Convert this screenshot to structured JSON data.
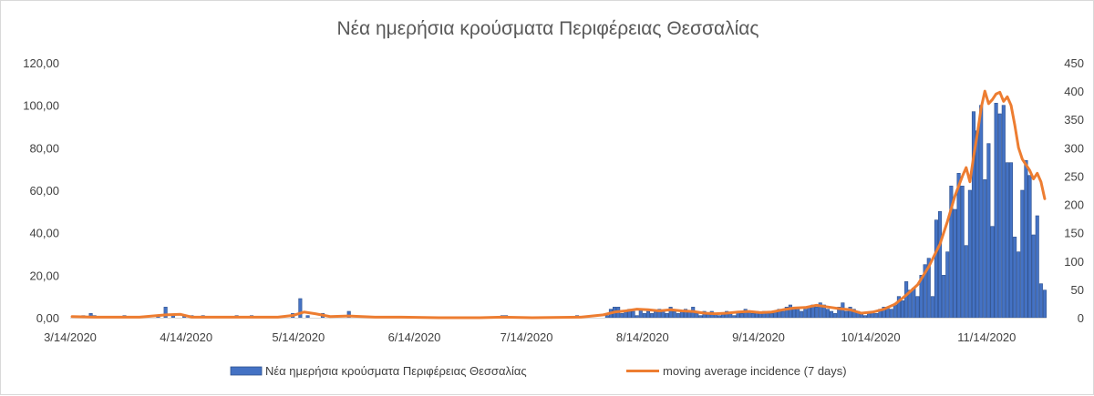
{
  "chart_data": {
    "type": "bar",
    "title": "Νέα ημερήσια κρούσματα Περιφέρειας Θεσσαλίας",
    "x_start": "2020-03-14",
    "x_end": "2020-11-30",
    "x_ticks": [
      "3/14/2020",
      "4/14/2020",
      "5/14/2020",
      "6/14/2020",
      "7/14/2020",
      "8/14/2020",
      "9/14/2020",
      "10/14/2020",
      "11/14/2020"
    ],
    "y_left": {
      "ticks": [
        "0,00",
        "20,00",
        "40,00",
        "60,00",
        "80,00",
        "100,00",
        "120,00"
      ],
      "range": [
        0,
        120
      ]
    },
    "y_right": {
      "ticks": [
        "0",
        "50",
        "100",
        "150",
        "200",
        "250",
        "300",
        "350",
        "400",
        "450"
      ],
      "range": [
        0,
        450
      ]
    },
    "grid": false,
    "legend_position": "bottom",
    "series": [
      {
        "name": "Νέα ημερήσια κρούσματα Περιφέρειας Θεσσαλίας",
        "kind": "bar",
        "axis": "left",
        "color": "#4472c4",
        "points": [
          [
            "2020-03-17",
            1
          ],
          [
            "2020-03-19",
            2
          ],
          [
            "2020-03-20",
            1
          ],
          [
            "2020-03-28",
            1
          ],
          [
            "2020-04-06",
            1
          ],
          [
            "2020-04-08",
            5
          ],
          [
            "2020-04-10",
            1
          ],
          [
            "2020-04-13",
            1
          ],
          [
            "2020-04-15",
            1
          ],
          [
            "2020-04-18",
            1
          ],
          [
            "2020-04-27",
            1
          ],
          [
            "2020-05-01",
            1
          ],
          [
            "2020-05-12",
            2
          ],
          [
            "2020-05-14",
            9
          ],
          [
            "2020-05-16",
            1
          ],
          [
            "2020-05-20",
            2
          ],
          [
            "2020-05-27",
            3
          ],
          [
            "2020-07-07",
            1
          ],
          [
            "2020-07-08",
            1
          ],
          [
            "2020-07-27",
            1
          ],
          [
            "2020-08-04",
            1
          ],
          [
            "2020-08-05",
            4
          ],
          [
            "2020-08-06",
            5
          ],
          [
            "2020-08-07",
            5
          ],
          [
            "2020-08-08",
            2
          ],
          [
            "2020-08-09",
            3
          ],
          [
            "2020-08-10",
            4
          ],
          [
            "2020-08-11",
            3
          ],
          [
            "2020-08-12",
            1
          ],
          [
            "2020-08-13",
            4
          ],
          [
            "2020-08-14",
            2
          ],
          [
            "2020-08-15",
            3
          ],
          [
            "2020-08-16",
            2
          ],
          [
            "2020-08-17",
            3
          ],
          [
            "2020-08-18",
            4
          ],
          [
            "2020-08-19",
            3
          ],
          [
            "2020-08-20",
            2
          ],
          [
            "2020-08-21",
            5
          ],
          [
            "2020-08-22",
            3
          ],
          [
            "2020-08-23",
            2
          ],
          [
            "2020-08-24",
            3
          ],
          [
            "2020-08-25",
            4
          ],
          [
            "2020-08-26",
            3
          ],
          [
            "2020-08-27",
            5
          ],
          [
            "2020-08-28",
            2
          ],
          [
            "2020-08-29",
            1
          ],
          [
            "2020-08-30",
            3
          ],
          [
            "2020-08-31",
            2
          ],
          [
            "2020-09-01",
            3
          ],
          [
            "2020-09-02",
            2
          ],
          [
            "2020-09-03",
            1
          ],
          [
            "2020-09-04",
            2
          ],
          [
            "2020-09-05",
            3
          ],
          [
            "2020-09-06",
            2
          ],
          [
            "2020-09-07",
            1
          ],
          [
            "2020-09-08",
            3
          ],
          [
            "2020-09-09",
            2
          ],
          [
            "2020-09-10",
            4
          ],
          [
            "2020-09-11",
            3
          ],
          [
            "2020-09-12",
            2
          ],
          [
            "2020-09-13",
            3
          ],
          [
            "2020-09-14",
            2
          ],
          [
            "2020-09-15",
            3
          ],
          [
            "2020-09-16",
            2
          ],
          [
            "2020-09-17",
            2
          ],
          [
            "2020-09-18",
            3
          ],
          [
            "2020-09-19",
            4
          ],
          [
            "2020-09-20",
            3
          ],
          [
            "2020-09-21",
            5
          ],
          [
            "2020-09-22",
            6
          ],
          [
            "2020-09-23",
            4
          ],
          [
            "2020-09-24",
            5
          ],
          [
            "2020-09-25",
            3
          ],
          [
            "2020-09-26",
            4
          ],
          [
            "2020-09-27",
            5
          ],
          [
            "2020-09-28",
            6
          ],
          [
            "2020-09-29",
            5
          ],
          [
            "2020-09-30",
            7
          ],
          [
            "2020-10-01",
            6
          ],
          [
            "2020-10-02",
            4
          ],
          [
            "2020-10-03",
            3
          ],
          [
            "2020-10-04",
            2
          ],
          [
            "2020-10-05",
            5
          ],
          [
            "2020-10-06",
            7
          ],
          [
            "2020-10-07",
            3
          ],
          [
            "2020-10-08",
            5
          ],
          [
            "2020-10-09",
            4
          ],
          [
            "2020-10-10",
            3
          ],
          [
            "2020-10-11",
            2
          ],
          [
            "2020-10-12",
            1
          ],
          [
            "2020-10-13",
            2
          ],
          [
            "2020-10-14",
            3
          ],
          [
            "2020-10-15",
            2
          ],
          [
            "2020-10-16",
            4
          ],
          [
            "2020-10-17",
            5
          ],
          [
            "2020-10-18",
            5
          ],
          [
            "2020-10-19",
            4
          ],
          [
            "2020-10-20",
            6
          ],
          [
            "2020-10-21",
            10
          ],
          [
            "2020-10-22",
            8
          ],
          [
            "2020-10-23",
            17
          ],
          [
            "2020-10-24",
            13
          ],
          [
            "2020-10-25",
            14
          ],
          [
            "2020-10-26",
            10
          ],
          [
            "2020-10-27",
            20
          ],
          [
            "2020-10-28",
            25
          ],
          [
            "2020-10-29",
            28
          ],
          [
            "2020-10-30",
            10
          ],
          [
            "2020-10-31",
            46
          ],
          [
            "2020-11-01",
            50
          ],
          [
            "2020-11-02",
            20
          ],
          [
            "2020-11-03",
            31
          ],
          [
            "2020-11-04",
            62
          ],
          [
            "2020-11-05",
            51
          ],
          [
            "2020-11-06",
            68
          ],
          [
            "2020-11-07",
            62
          ],
          [
            "2020-11-08",
            34
          ],
          [
            "2020-11-09",
            60
          ],
          [
            "2020-11-10",
            97
          ],
          [
            "2020-11-11",
            88
          ],
          [
            "2020-11-12",
            100
          ],
          [
            "2020-11-13",
            65
          ],
          [
            "2020-11-14",
            82
          ],
          [
            "2020-11-15",
            43
          ],
          [
            "2020-11-16",
            101
          ],
          [
            "2020-11-17",
            96
          ],
          [
            "2020-11-18",
            100
          ],
          [
            "2020-11-19",
            73
          ],
          [
            "2020-11-20",
            73
          ],
          [
            "2020-11-21",
            38
          ],
          [
            "2020-11-22",
            31
          ],
          [
            "2020-11-23",
            60
          ],
          [
            "2020-11-24",
            74
          ],
          [
            "2020-11-25",
            67
          ],
          [
            "2020-11-26",
            39
          ],
          [
            "2020-11-27",
            48
          ],
          [
            "2020-11-28",
            16
          ],
          [
            "2020-11-29",
            13
          ]
        ]
      },
      {
        "name": "moving average incidence (7 days)",
        "kind": "line",
        "axis": "right",
        "color": "#ed7d31",
        "points": [
          [
            "2020-03-14",
            2
          ],
          [
            "2020-03-20",
            1
          ],
          [
            "2020-03-26",
            1
          ],
          [
            "2020-04-01",
            1
          ],
          [
            "2020-04-08",
            5
          ],
          [
            "2020-04-12",
            6
          ],
          [
            "2020-04-15",
            1
          ],
          [
            "2020-04-22",
            1
          ],
          [
            "2020-05-01",
            1
          ],
          [
            "2020-05-08",
            1
          ],
          [
            "2020-05-12",
            4
          ],
          [
            "2020-05-15",
            10
          ],
          [
            "2020-05-18",
            7
          ],
          [
            "2020-05-22",
            2
          ],
          [
            "2020-05-27",
            3
          ],
          [
            "2020-06-03",
            1
          ],
          [
            "2020-06-10",
            1
          ],
          [
            "2020-06-20",
            0
          ],
          [
            "2020-07-01",
            0
          ],
          [
            "2020-07-07",
            1
          ],
          [
            "2020-07-15",
            0
          ],
          [
            "2020-07-28",
            1
          ],
          [
            "2020-08-03",
            5
          ],
          [
            "2020-08-06",
            10
          ],
          [
            "2020-08-09",
            12
          ],
          [
            "2020-08-12",
            15
          ],
          [
            "2020-08-15",
            14
          ],
          [
            "2020-08-18",
            12
          ],
          [
            "2020-08-21",
            14
          ],
          [
            "2020-08-24",
            12
          ],
          [
            "2020-08-27",
            11
          ],
          [
            "2020-08-30",
            8
          ],
          [
            "2020-09-02",
            7
          ],
          [
            "2020-09-05",
            8
          ],
          [
            "2020-09-08",
            10
          ],
          [
            "2020-09-11",
            11
          ],
          [
            "2020-09-14",
            9
          ],
          [
            "2020-09-17",
            10
          ],
          [
            "2020-09-20",
            14
          ],
          [
            "2020-09-23",
            17
          ],
          [
            "2020-09-26",
            18
          ],
          [
            "2020-09-29",
            22
          ],
          [
            "2020-10-02",
            19
          ],
          [
            "2020-10-05",
            16
          ],
          [
            "2020-10-08",
            14
          ],
          [
            "2020-10-11",
            8
          ],
          [
            "2020-10-14",
            10
          ],
          [
            "2020-10-17",
            15
          ],
          [
            "2020-10-20",
            24
          ],
          [
            "2020-10-23",
            40
          ],
          [
            "2020-10-26",
            58
          ],
          [
            "2020-10-29",
            90
          ],
          [
            "2020-11-01",
            130
          ],
          [
            "2020-11-03",
            170
          ],
          [
            "2020-11-05",
            215
          ],
          [
            "2020-11-07",
            250
          ],
          [
            "2020-11-08",
            265
          ],
          [
            "2020-11-09",
            240
          ],
          [
            "2020-11-10",
            285
          ],
          [
            "2020-11-11",
            325
          ],
          [
            "2020-11-12",
            370
          ],
          [
            "2020-11-13",
            400
          ],
          [
            "2020-11-14",
            378
          ],
          [
            "2020-11-15",
            385
          ],
          [
            "2020-11-16",
            395
          ],
          [
            "2020-11-17",
            398
          ],
          [
            "2020-11-18",
            382
          ],
          [
            "2020-11-19",
            390
          ],
          [
            "2020-11-20",
            375
          ],
          [
            "2020-11-21",
            340
          ],
          [
            "2020-11-22",
            300
          ],
          [
            "2020-11-23",
            280
          ],
          [
            "2020-11-24",
            270
          ],
          [
            "2020-11-25",
            260
          ],
          [
            "2020-11-26",
            245
          ],
          [
            "2020-11-27",
            255
          ],
          [
            "2020-11-28",
            240
          ],
          [
            "2020-11-29",
            210
          ]
        ]
      }
    ]
  }
}
